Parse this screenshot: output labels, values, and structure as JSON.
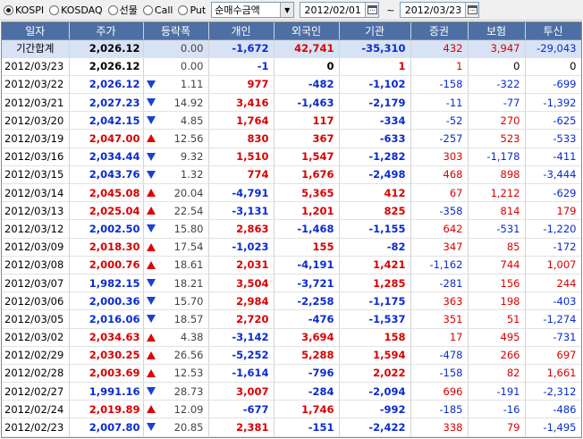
{
  "toolbar": {
    "radios": [
      {
        "label": "KOSPI",
        "checked": true
      },
      {
        "label": "KOSDAQ",
        "checked": false
      },
      {
        "label": "선물",
        "checked": false
      },
      {
        "label": "Call",
        "checked": false
      },
      {
        "label": "Put",
        "checked": false
      }
    ],
    "mode_select": {
      "value": "순매수금액"
    },
    "date_from": "2012/02/01",
    "tilde": "~",
    "date_to": "2012/03/23"
  },
  "colors": {
    "header_bg": "#4e6fa3",
    "total_row_bg": "#d7e2f4",
    "up": "#d90000",
    "down": "#0a2bd1"
  },
  "table": {
    "headers": [
      "일자",
      "주가",
      "등락폭",
      "개인",
      "외국인",
      "기관",
      "증권",
      "보험",
      "투신"
    ],
    "total": {
      "date": "기간합계",
      "price": "2,026.12",
      "chg": "0.00",
      "ind": "-1,672",
      "for": "42,741",
      "inst": "-35,310",
      "sec": "432",
      "ins": "3,947",
      "trust": "-29,043"
    },
    "rows": [
      {
        "date": "2012/03/23",
        "price": "2,026.12",
        "dir": "none",
        "chg": "0.00",
        "ind": "-1",
        "for": "0",
        "inst": "1",
        "sec": "1",
        "ins": "0",
        "trust": "0"
      },
      {
        "date": "2012/03/22",
        "price": "2,026.12",
        "dir": "down",
        "chg": "1.11",
        "ind": "977",
        "for": "-482",
        "inst": "-1,102",
        "sec": "-158",
        "ins": "-322",
        "trust": "-699"
      },
      {
        "date": "2012/03/21",
        "price": "2,027.23",
        "dir": "down",
        "chg": "14.92",
        "ind": "3,416",
        "for": "-1,463",
        "inst": "-2,179",
        "sec": "-11",
        "ins": "-77",
        "trust": "-1,392"
      },
      {
        "date": "2012/03/20",
        "price": "2,042.15",
        "dir": "down",
        "chg": "4.85",
        "ind": "1,764",
        "for": "117",
        "inst": "-334",
        "sec": "-52",
        "ins": "270",
        "trust": "-625"
      },
      {
        "date": "2012/03/19",
        "price": "2,047.00",
        "dir": "up",
        "chg": "12.56",
        "ind": "830",
        "for": "367",
        "inst": "-633",
        "sec": "-257",
        "ins": "523",
        "trust": "-533"
      },
      {
        "date": "2012/03/16",
        "price": "2,034.44",
        "dir": "down",
        "chg": "9.32",
        "ind": "1,510",
        "for": "1,547",
        "inst": "-1,282",
        "sec": "303",
        "ins": "-1,178",
        "trust": "-411"
      },
      {
        "date": "2012/03/15",
        "price": "2,043.76",
        "dir": "down",
        "chg": "1.32",
        "ind": "774",
        "for": "1,676",
        "inst": "-2,498",
        "sec": "468",
        "ins": "898",
        "trust": "-3,444"
      },
      {
        "date": "2012/03/14",
        "price": "2,045.08",
        "dir": "up",
        "chg": "20.04",
        "ind": "-4,791",
        "for": "5,365",
        "inst": "412",
        "sec": "67",
        "ins": "1,212",
        "trust": "-629"
      },
      {
        "date": "2012/03/13",
        "price": "2,025.04",
        "dir": "up",
        "chg": "22.54",
        "ind": "-3,131",
        "for": "1,201",
        "inst": "825",
        "sec": "-358",
        "ins": "814",
        "trust": "179"
      },
      {
        "date": "2012/03/12",
        "price": "2,002.50",
        "dir": "down",
        "chg": "15.80",
        "ind": "2,863",
        "for": "-1,468",
        "inst": "-1,155",
        "sec": "642",
        "ins": "-531",
        "trust": "-1,220"
      },
      {
        "date": "2012/03/09",
        "price": "2,018.30",
        "dir": "up",
        "chg": "17.54",
        "ind": "-1,023",
        "for": "155",
        "inst": "-82",
        "sec": "347",
        "ins": "85",
        "trust": "-172"
      },
      {
        "date": "2012/03/08",
        "price": "2,000.76",
        "dir": "up",
        "chg": "18.61",
        "ind": "2,031",
        "for": "-4,191",
        "inst": "1,421",
        "sec": "-1,162",
        "ins": "744",
        "trust": "1,007"
      },
      {
        "date": "2012/03/07",
        "price": "1,982.15",
        "dir": "down",
        "chg": "18.21",
        "ind": "3,504",
        "for": "-3,721",
        "inst": "1,285",
        "sec": "-281",
        "ins": "156",
        "trust": "244"
      },
      {
        "date": "2012/03/06",
        "price": "2,000.36",
        "dir": "down",
        "chg": "15.70",
        "ind": "2,984",
        "for": "-2,258",
        "inst": "-1,175",
        "sec": "363",
        "ins": "198",
        "trust": "-403"
      },
      {
        "date": "2012/03/05",
        "price": "2,016.06",
        "dir": "down",
        "chg": "18.57",
        "ind": "2,720",
        "for": "-476",
        "inst": "-1,537",
        "sec": "351",
        "ins": "51",
        "trust": "-1,274"
      },
      {
        "date": "2012/03/02",
        "price": "2,034.63",
        "dir": "up",
        "chg": "4.38",
        "ind": "-3,142",
        "for": "3,694",
        "inst": "158",
        "sec": "17",
        "ins": "495",
        "trust": "-731"
      },
      {
        "date": "2012/02/29",
        "price": "2,030.25",
        "dir": "up",
        "chg": "26.56",
        "ind": "-5,252",
        "for": "5,288",
        "inst": "1,594",
        "sec": "-478",
        "ins": "266",
        "trust": "697"
      },
      {
        "date": "2012/02/28",
        "price": "2,003.69",
        "dir": "up",
        "chg": "12.53",
        "ind": "-1,614",
        "for": "-796",
        "inst": "2,022",
        "sec": "-158",
        "ins": "82",
        "trust": "1,661"
      },
      {
        "date": "2012/02/27",
        "price": "1,991.16",
        "dir": "down",
        "chg": "28.73",
        "ind": "3,007",
        "for": "-284",
        "inst": "-2,094",
        "sec": "696",
        "ins": "-191",
        "trust": "-2,312"
      },
      {
        "date": "2012/02/24",
        "price": "2,019.89",
        "dir": "up",
        "chg": "12.09",
        "ind": "-677",
        "for": "1,746",
        "inst": "-992",
        "sec": "-185",
        "ins": "-16",
        "trust": "-486"
      },
      {
        "date": "2012/02/23",
        "price": "2,007.80",
        "dir": "down",
        "chg": "20.85",
        "ind": "2,381",
        "for": "-151",
        "inst": "-2,422",
        "sec": "338",
        "ins": "79",
        "trust": "-1,495"
      }
    ]
  }
}
